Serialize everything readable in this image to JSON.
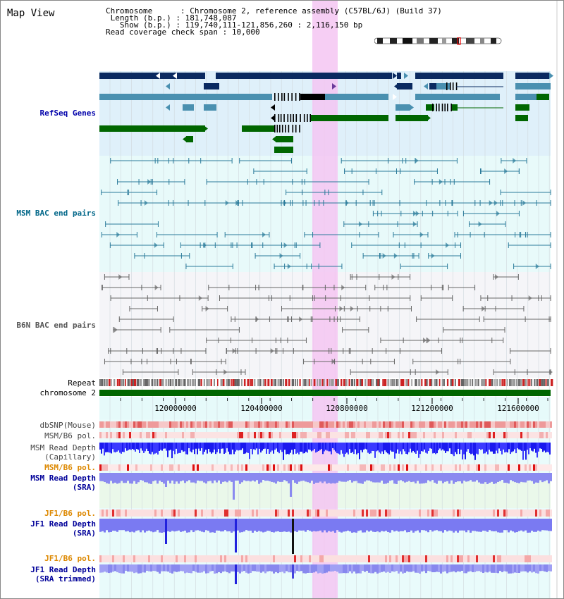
{
  "page": {
    "title": "Map View"
  },
  "info": {
    "chromosome_label": "Chromosome",
    "chromosome_value": "Chromosome 2, reference assembly (C57BL/6J) (Build 37)",
    "length_label": "Length (b.p.)",
    "length_value": "181,748,087",
    "show_label": "Show (b.p.)",
    "show_value": "119,740,111-121,856,260 : 2,116,150 bp",
    "coverage_label": "Read coverage check span",
    "coverage_value": "10,000"
  },
  "tracks": {
    "refseq": "RefSeq Genes",
    "msm_bac": "MSM BAC end pairs",
    "b6n_bac": "B6N BAC end pairs",
    "repeat": "Repeat",
    "chromosome": "chromosome 2",
    "dbsnp": "dbSNP(Mouse)",
    "msm_b6_pol": "MSM/B6 pol.",
    "msm_depth_cap_1": "MSM Read Depth",
    "msm_depth_cap_2": "(Capillary)",
    "msm_b6_pol2": "MSM/B6 pol.",
    "msm_depth_sra_1": "MSM Read Depth",
    "msm_depth_sra_2": "(SRA)",
    "jf1_b6_pol": "JF1/B6 pol.",
    "jf1_depth_sra_1": "JF1 Read Depth",
    "jf1_depth_sra_2": "(SRA)",
    "jf1_b6_pol2": "JF1/B6 pol.",
    "jf1_depth_trim_1": "JF1 Read Depth",
    "jf1_depth_trim_2": "(SRA trimmed)"
  },
  "axis": {
    "ticks": [
      "120000000",
      "120400000",
      "120800000",
      "121200000",
      "121600000"
    ]
  },
  "colors": {
    "refseq_label": "#0000aa",
    "msm_bac_label": "#006688",
    "b6n_bac_label": "#555555",
    "orange_label": "#dd8800",
    "navy_label": "#000099",
    "gray_label": "#444444",
    "highlight": "#f5c6f2",
    "gene_dark": "#0a2a60",
    "gene_mid": "#4a90b0",
    "gene_green": "#006600"
  }
}
